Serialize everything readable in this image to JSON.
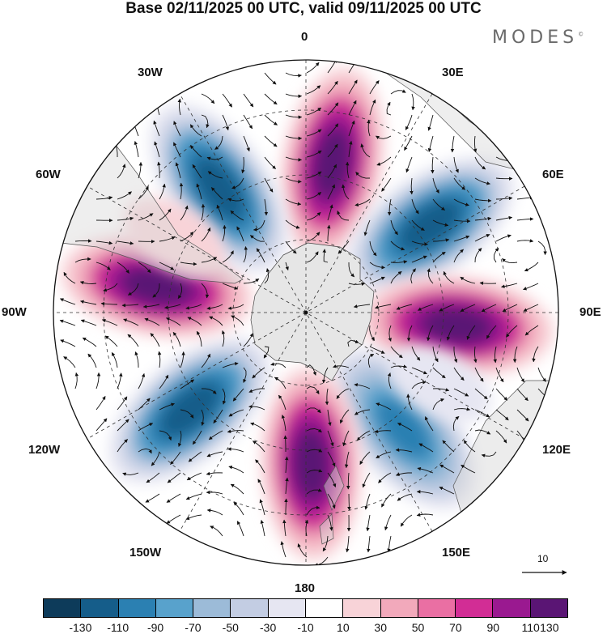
{
  "title": "Base 02/11/2025 00 UTC, valid 09/11/2025 00 UTC",
  "brand": "MODES",
  "brand_mark": "©",
  "longitude_labels": {
    "lon0": "0",
    "lon30e": "30E",
    "lon60e": "60E",
    "lon90e": "90E",
    "lon120e": "120E",
    "lon150e": "150E",
    "lon180": "180",
    "lon150w": "150W",
    "lon120w": "120W",
    "lon90w": "90W",
    "lon60w": "60W",
    "lon30w": "30W"
  },
  "vector_reference": "10",
  "colorbar": {
    "colors": [
      "#0d3b5a",
      "#155d8a",
      "#2b80b2",
      "#58a2cc",
      "#9cbbd8",
      "#c3cde3",
      "#e6e6f2",
      "#ffffff",
      "#f8d3d8",
      "#f2a9bb",
      "#ea6fa3",
      "#d22d95",
      "#9a1990",
      "#5a1574"
    ],
    "ticks": [
      "-130",
      "-110",
      "-90",
      "-70",
      "-50",
      "-30",
      "-10",
      "10",
      "30",
      "50",
      "70",
      "90",
      "110",
      "130"
    ]
  },
  "map": {
    "projection": "south polar stereographic",
    "field": "anomaly",
    "centers": [
      {
        "name": "positive-center-0",
        "lon": 10,
        "value": 130
      },
      {
        "name": "negative-center-50e",
        "lon": 55,
        "value": -130
      },
      {
        "name": "positive-center-95e",
        "lon": 95,
        "value": 130
      },
      {
        "name": "negative-center-140e",
        "lon": 140,
        "value": -110
      },
      {
        "name": "positive-center-175e",
        "lon": 178,
        "value": 130
      },
      {
        "name": "negative-center-130w",
        "lon": -130,
        "value": -130
      },
      {
        "name": "positive-center-80w",
        "lon": -80,
        "value": 130
      },
      {
        "name": "negative-center-35w",
        "lon": -35,
        "value": -130
      },
      {
        "name": "weak-positive-60w",
        "lon": -60,
        "value": 30
      },
      {
        "name": "weak-negative-120e",
        "lon": 118,
        "value": -30
      }
    ]
  }
}
